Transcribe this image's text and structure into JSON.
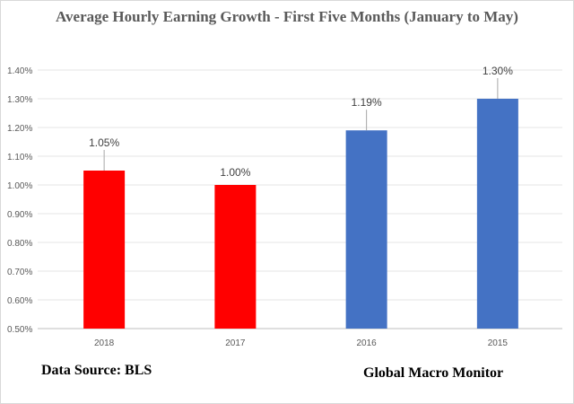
{
  "chart_data": {
    "type": "bar",
    "title": "Average Hourly Earning Growth - First Five Months (January to May)",
    "categories": [
      "2018",
      "2017",
      "2016",
      "2015"
    ],
    "values": [
      1.05,
      1.0,
      1.19,
      1.3
    ],
    "data_labels": [
      "1.05%",
      "1.00%",
      "1.19%",
      "1.30%"
    ],
    "bar_colors": [
      "#ff0000",
      "#ff0000",
      "#4472c4",
      "#4472c4"
    ],
    "ylim": [
      0.5,
      1.4
    ],
    "yticks": [
      "0.50%",
      "0.60%",
      "0.70%",
      "0.80%",
      "0.90%",
      "1.00%",
      "1.10%",
      "1.20%",
      "1.30%",
      "1.40%"
    ],
    "xlabel": "",
    "ylabel": "",
    "grid": true,
    "legend": "none"
  },
  "annotations": {
    "source": "Data Source: BLS",
    "brand": "Global Macro Monitor"
  }
}
